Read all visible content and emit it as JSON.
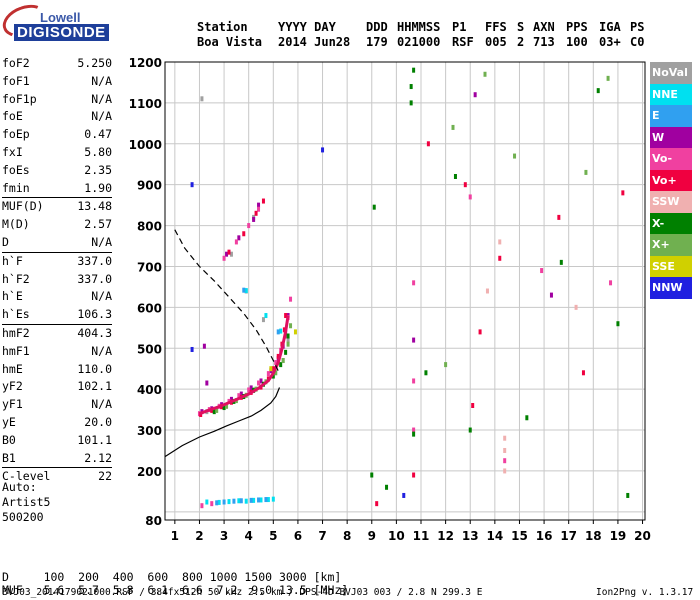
{
  "logo": {
    "line1": "Lowell",
    "line2": "DIGISONDE"
  },
  "header": {
    "label_station": "Station",
    "val_station": "Boa Vista",
    "label_date": "YYYY DAY",
    "val_date": "2014 Jun28",
    "label_ddd": "DDD",
    "val_ddd": "179",
    "label_time": "HHMMSS",
    "val_time": "021000",
    "label_p1": "P1",
    "val_p1": "RSF",
    "label_ffs": "FFS",
    "val_ffs": "005",
    "label_s": "S",
    "val_s": "2",
    "label_axn": "AXN",
    "val_axn": "713",
    "label_pps": "PPS",
    "val_pps": "100",
    "label_iga": "IGA",
    "val_iga": "03+",
    "label_ps": "PS",
    "val_ps": "C0"
  },
  "params": [
    {
      "name": "foF2",
      "value": "5.250"
    },
    {
      "name": "foF1",
      "value": "N/A"
    },
    {
      "name": "foF1p",
      "value": "N/A"
    },
    {
      "name": "foE",
      "value": "N/A"
    },
    {
      "name": "foEp",
      "value": "0.47"
    },
    {
      "name": "fxI",
      "value": "5.80"
    },
    {
      "name": "foEs",
      "value": "2.35"
    },
    {
      "name": "fmin",
      "value": "1.90"
    },
    {
      "name": "MUF(D)",
      "value": "13.48",
      "sep": true
    },
    {
      "name": "M(D)",
      "value": "2.57"
    },
    {
      "name": "D",
      "value": "N/A"
    },
    {
      "name": "h`F",
      "value": "337.0",
      "sep": true
    },
    {
      "name": "h`F2",
      "value": "337.0"
    },
    {
      "name": "h`E",
      "value": "N/A"
    },
    {
      "name": "h`Es",
      "value": "106.3"
    },
    {
      "name": "hmF2",
      "value": "404.3",
      "sep": true
    },
    {
      "name": "hmF1",
      "value": "N/A"
    },
    {
      "name": "hmE",
      "value": "110.0"
    },
    {
      "name": "yF2",
      "value": "102.1"
    },
    {
      "name": "yF1",
      "value": "N/A"
    },
    {
      "name": "yE",
      "value": "20.0"
    },
    {
      "name": "B0",
      "value": "101.1"
    },
    {
      "name": "B1",
      "value": "2.12"
    },
    {
      "name": "C-level",
      "value": "22",
      "sep": true
    }
  ],
  "auto": {
    "line1": "Auto:",
    "line2": "Artist5",
    "line3": "500200"
  },
  "legend": [
    {
      "label": "NoVal",
      "color": "#a0a0a0"
    },
    {
      "label": "NNE",
      "color": "#00e0f0"
    },
    {
      "label": "E",
      "color": "#30a0f0"
    },
    {
      "label": "W",
      "color": "#a000a0"
    },
    {
      "label": "Vo-",
      "color": "#f040a0"
    },
    {
      "label": "Vo+",
      "color": "#f00040"
    },
    {
      "label": "SSW",
      "color": "#f0b0b0"
    },
    {
      "label": "X-",
      "color": "#008000"
    },
    {
      "label": "X+",
      "color": "#70b050"
    },
    {
      "label": "SSE",
      "color": "#d0d000"
    },
    {
      "label": "NNW",
      "color": "#2020e0"
    }
  ],
  "muf_table": {
    "d_label": "D",
    "d_values": "100  200  400  600  800 1000 1500 3000",
    "d_unit": "[km]",
    "muf_label": "MUF",
    "muf_values": "5.6  5.7  5.8  6.1  6.6  7.2  9.0 13.5",
    "muf_unit": "[MHz]"
  },
  "footer": {
    "left": "BVJ03_2014179021000.RSF / 384fx512h 50 kHz 2.5 km / DPS-4D BVJ03 003 / 2.8 N 299.3 E",
    "right": "Ion2Png v. 1.3.17"
  },
  "chart_data": {
    "type": "scatter",
    "title": "",
    "xlabel": "",
    "ylabel": "",
    "xlim": [
      0.6,
      20.1
    ],
    "ylim": [
      80,
      1200
    ],
    "x_ticks": [
      1,
      2,
      3,
      4,
      5,
      6,
      7,
      8,
      9,
      10,
      11,
      12,
      13,
      14,
      15,
      16,
      17,
      18,
      19,
      20
    ],
    "y_ticks": [
      80,
      100,
      200,
      300,
      400,
      500,
      600,
      700,
      800,
      900,
      1000,
      1100,
      1200
    ],
    "x_tick_labels": [
      "1",
      "2",
      "3",
      "4",
      "5",
      "6",
      "7",
      "8",
      "9",
      "10",
      "11",
      "12",
      "13",
      "14",
      "15",
      "16",
      "17",
      "18",
      "19",
      "20"
    ],
    "y_tick_labels": [
      "80",
      "",
      "200",
      "300",
      "400",
      "500",
      "600",
      "700",
      "800",
      "900",
      "1000",
      "1100",
      "1200"
    ],
    "grid": true,
    "series": [
      {
        "name": "NoVal",
        "color": "#a0a0a0",
        "points": [
          [
            2.3,
            345
          ],
          [
            3.1,
            360
          ],
          [
            4.2,
            398
          ],
          [
            5.4,
            470
          ],
          [
            5.6,
            520
          ],
          [
            3.9,
            640
          ],
          [
            4.6,
            570
          ],
          [
            3.3,
            730
          ],
          [
            4.2,
            820
          ],
          [
            2.1,
            1110
          ]
        ]
      },
      {
        "name": "NNE",
        "color": "#00e0f0",
        "points": [
          [
            2.3,
            124
          ],
          [
            2.8,
            123
          ],
          [
            3.2,
            125
          ],
          [
            3.6,
            127
          ],
          [
            3.9,
            126
          ],
          [
            4.2,
            128
          ],
          [
            4.5,
            129
          ],
          [
            4.8,
            130
          ],
          [
            5.0,
            131
          ],
          [
            3.9,
            641
          ],
          [
            5.3,
            542
          ],
          [
            4.7,
            580
          ]
        ]
      },
      {
        "name": "E",
        "color": "#30a0f0",
        "points": [
          [
            2.7,
            122
          ],
          [
            3.0,
            124
          ],
          [
            3.4,
            126
          ],
          [
            3.7,
            127
          ],
          [
            4.1,
            128
          ],
          [
            4.4,
            129
          ],
          [
            4.7,
            130
          ],
          [
            3.8,
            642
          ],
          [
            5.2,
            540
          ]
        ]
      },
      {
        "name": "W",
        "color": "#a000a0",
        "points": [
          [
            2.1,
            345
          ],
          [
            2.5,
            352
          ],
          [
            2.9,
            362
          ],
          [
            3.3,
            375
          ],
          [
            3.7,
            388
          ],
          [
            4.1,
            403
          ],
          [
            4.5,
            420
          ],
          [
            4.9,
            445
          ],
          [
            5.2,
            475
          ],
          [
            5.4,
            505
          ],
          [
            5.5,
            540
          ],
          [
            5.6,
            580
          ],
          [
            3.1,
            730
          ],
          [
            3.6,
            770
          ],
          [
            4.2,
            815
          ],
          [
            4.4,
            850
          ],
          [
            2.3,
            415
          ],
          [
            2.2,
            505
          ],
          [
            10.7,
            520
          ],
          [
            13.2,
            1120
          ],
          [
            16.3,
            630
          ]
        ]
      },
      {
        "name": "Vo-",
        "color": "#f040a0",
        "points": [
          [
            2.0,
            340
          ],
          [
            2.4,
            350
          ],
          [
            2.8,
            358
          ],
          [
            3.2,
            370
          ],
          [
            3.6,
            384
          ],
          [
            4.0,
            398
          ],
          [
            4.4,
            415
          ],
          [
            4.8,
            438
          ],
          [
            5.1,
            465
          ],
          [
            5.3,
            495
          ],
          [
            5.5,
            530
          ],
          [
            5.6,
            575
          ],
          [
            5.7,
            620
          ],
          [
            3.0,
            720
          ],
          [
            3.5,
            760
          ],
          [
            4.0,
            800
          ],
          [
            4.4,
            840
          ],
          [
            10.7,
            660
          ],
          [
            10.7,
            300
          ],
          [
            10.7,
            420
          ],
          [
            14.4,
            225
          ],
          [
            2.1,
            115
          ],
          [
            2.5,
            120
          ],
          [
            13.0,
            870
          ],
          [
            15.9,
            690
          ],
          [
            18.7,
            660
          ]
        ]
      },
      {
        "name": "Vo+",
        "color": "#f00040",
        "points": [
          [
            2.05,
            338
          ],
          [
            2.5,
            348
          ],
          [
            2.9,
            357
          ],
          [
            3.3,
            368
          ],
          [
            3.7,
            380
          ],
          [
            4.1,
            392
          ],
          [
            4.5,
            405
          ],
          [
            4.8,
            425
          ],
          [
            5.0,
            450
          ],
          [
            5.2,
            480
          ],
          [
            5.35,
            510
          ],
          [
            5.45,
            545
          ],
          [
            5.5,
            580
          ],
          [
            3.2,
            735
          ],
          [
            3.8,
            780
          ],
          [
            4.3,
            830
          ],
          [
            4.6,
            860
          ],
          [
            9.2,
            120
          ],
          [
            10.7,
            190
          ],
          [
            13.1,
            360
          ],
          [
            13.4,
            540
          ],
          [
            12.8,
            900
          ],
          [
            14.2,
            720
          ],
          [
            16.6,
            820
          ],
          [
            17.6,
            440
          ],
          [
            19.2,
            880
          ],
          [
            11.3,
            1000
          ]
        ]
      },
      {
        "name": "SSW",
        "color": "#f0b0b0",
        "points": [
          [
            14.4,
            280
          ],
          [
            14.4,
            250
          ],
          [
            14.4,
            200
          ],
          [
            14.2,
            760
          ],
          [
            13.7,
            640
          ],
          [
            17.3,
            600
          ]
        ]
      },
      {
        "name": "X-",
        "color": "#008000",
        "points": [
          [
            2.6,
            345
          ],
          [
            3.0,
            355
          ],
          [
            3.4,
            370
          ],
          [
            3.8,
            382
          ],
          [
            4.2,
            397
          ],
          [
            4.6,
            412
          ],
          [
            5.0,
            432
          ],
          [
            5.3,
            460
          ],
          [
            5.5,
            490
          ],
          [
            5.6,
            530
          ],
          [
            10.7,
            290
          ],
          [
            10.7,
            1180
          ],
          [
            10.6,
            1140
          ],
          [
            10.6,
            1100
          ],
          [
            9.1,
            845
          ],
          [
            9.0,
            190
          ],
          [
            9.6,
            160
          ],
          [
            12.4,
            920
          ],
          [
            11.2,
            440
          ],
          [
            13.0,
            300
          ],
          [
            15.3,
            330
          ],
          [
            16.7,
            710
          ],
          [
            18.2,
            1130
          ],
          [
            19.0,
            560
          ],
          [
            19.4,
            140
          ]
        ]
      },
      {
        "name": "X+",
        "color": "#70b050",
        "points": [
          [
            2.7,
            348
          ],
          [
            3.1,
            358
          ],
          [
            3.5,
            372
          ],
          [
            3.9,
            385
          ],
          [
            4.3,
            400
          ],
          [
            4.7,
            418
          ],
          [
            5.1,
            440
          ],
          [
            5.4,
            470
          ],
          [
            5.6,
            510
          ],
          [
            5.7,
            555
          ],
          [
            12.3,
            1040
          ],
          [
            13.6,
            1170
          ],
          [
            14.8,
            970
          ],
          [
            17.7,
            930
          ],
          [
            18.6,
            1160
          ],
          [
            12.0,
            460
          ]
        ]
      },
      {
        "name": "SSE",
        "color": "#d0d000",
        "points": [
          [
            5.9,
            540
          ],
          [
            4.9,
            450
          ]
        ]
      },
      {
        "name": "NNW",
        "color": "#2020e0",
        "points": [
          [
            1.7,
            900
          ],
          [
            1.7,
            497
          ],
          [
            7.0,
            985
          ],
          [
            10.3,
            140
          ]
        ]
      }
    ],
    "profile_solid": {
      "x": [
        0.6,
        1.3,
        2.0,
        2.6,
        3.1,
        3.6,
        4.1,
        4.5,
        4.9,
        5.1,
        5.25
      ],
      "y": [
        235,
        262,
        283,
        297,
        310,
        322,
        334,
        348,
        366,
        382,
        404
      ]
    },
    "profile_dashed": {
      "x": [
        1.0,
        1.4,
        2.0,
        2.6,
        3.2,
        3.8,
        4.3,
        4.7,
        5.0,
        5.25
      ],
      "y": [
        790,
        745,
        700,
        665,
        625,
        585,
        545,
        505,
        470,
        438
      ]
    },
    "trace_curve": {
      "x": [
        2.0,
        2.4,
        2.8,
        3.2,
        3.6,
        4.0,
        4.4,
        4.8,
        5.0,
        5.2,
        5.35,
        5.5,
        5.6
      ],
      "y": [
        340,
        349,
        357,
        367,
        377,
        388,
        402,
        421,
        439,
        465,
        498,
        540,
        580
      ]
    }
  }
}
